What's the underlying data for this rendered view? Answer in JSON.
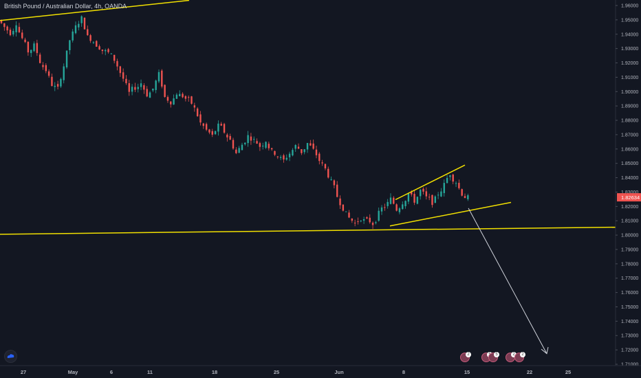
{
  "header": {
    "symbol_title": "British Pound / Australian Dollar, 4h, OANDA"
  },
  "colors": {
    "background": "#131722",
    "up_candle": "#26a69a",
    "down_candle": "#ef5350",
    "trendline": "#f2e000",
    "projection_arrow": "#d1d4dc",
    "price_tag": "#ef5350",
    "axis_text": "#b2b5be"
  },
  "icons": {
    "logo": "tradingview-cloud-icon",
    "events": "economic-event-flag-icon"
  },
  "chart_data": {
    "type": "candlestick",
    "title": "British Pound / Australian Dollar, 4h, OANDA",
    "ylim": [
      1.705,
      1.965
    ],
    "y_ticks": [
      "1.96000",
      "1.95000",
      "1.94000",
      "1.93000",
      "1.92000",
      "1.91000",
      "1.90000",
      "1.89000",
      "1.88000",
      "1.87000",
      "1.86000",
      "1.85000",
      "1.84000",
      "1.83000",
      "1.82000",
      "1.81000",
      "1.80000",
      "1.79000",
      "1.78000",
      "1.77000",
      "1.76000",
      "1.75000",
      "1.74000",
      "1.73000",
      "1.72000",
      "1.71000"
    ],
    "x_ticks": [
      "27",
      "May",
      "6",
      "11",
      "18",
      "25",
      "Jun",
      "8",
      "15",
      "22",
      "25"
    ],
    "last_price": "1.82634",
    "series_close_path": [
      1.945,
      1.941,
      1.948,
      1.937,
      1.928,
      1.932,
      1.921,
      1.915,
      1.905,
      1.902,
      1.918,
      1.936,
      1.945,
      1.951,
      1.938,
      1.935,
      1.931,
      1.928,
      1.925,
      1.918,
      1.909,
      1.899,
      1.903,
      1.906,
      1.898,
      1.902,
      1.912,
      1.896,
      1.893,
      1.899,
      1.897,
      1.894,
      1.888,
      1.878,
      1.873,
      1.869,
      1.876,
      1.872,
      1.866,
      1.857,
      1.863,
      1.869,
      1.866,
      1.862,
      1.866,
      1.858,
      1.855,
      1.852,
      1.857,
      1.862,
      1.858,
      1.864,
      1.859,
      1.852,
      1.846,
      1.837,
      1.827,
      1.819,
      1.812,
      1.808,
      1.812,
      1.81,
      1.808,
      1.815,
      1.82,
      1.825,
      1.818,
      1.823,
      1.829,
      1.824,
      1.831,
      1.826,
      1.823,
      1.829,
      1.835,
      1.843,
      1.837,
      1.829,
      1.826
    ],
    "event_badges": [
      "2",
      "5",
      "5",
      "2",
      "2"
    ]
  }
}
